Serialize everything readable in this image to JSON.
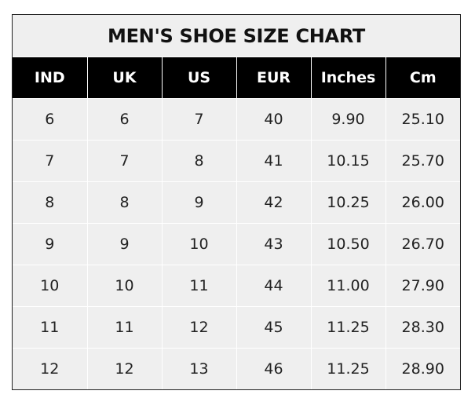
{
  "title": "MEN'S SHOE SIZE CHART",
  "colors": {
    "header_bg": "#000000",
    "header_text": "#ffffff",
    "cell_bg": "#efefef"
  },
  "chart_data": {
    "type": "table",
    "title": "MEN'S SHOE SIZE CHART",
    "columns": [
      "IND",
      "UK",
      "US",
      "EUR",
      "Inches",
      "Cm"
    ],
    "rows": [
      [
        "6",
        "6",
        "7",
        "40",
        "9.90",
        "25.10"
      ],
      [
        "7",
        "7",
        "8",
        "41",
        "10.15",
        "25.70"
      ],
      [
        "8",
        "8",
        "9",
        "42",
        "10.25",
        "26.00"
      ],
      [
        "9",
        "9",
        "10",
        "43",
        "10.50",
        "26.70"
      ],
      [
        "10",
        "10",
        "11",
        "44",
        "11.00",
        "27.90"
      ],
      [
        "11",
        "11",
        "12",
        "45",
        "11.25",
        "28.30"
      ],
      [
        "12",
        "12",
        "13",
        "46",
        "11.25",
        "28.90"
      ]
    ]
  }
}
